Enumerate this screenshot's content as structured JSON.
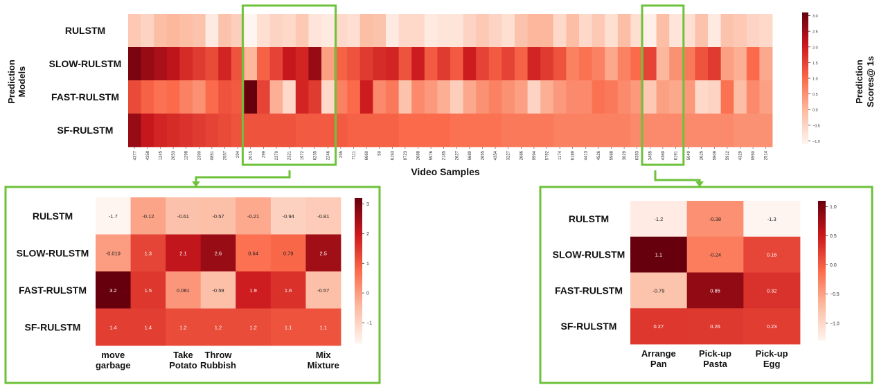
{
  "y_axis_title_lines": [
    "Prediction",
    "Models"
  ],
  "colorbar_title_lines": [
    "Prediction",
    "Scores@ 1s"
  ],
  "colors": {
    "highlight": "#6dc23a",
    "scale": [
      "#fff5f0",
      "#fcbba1",
      "#fb6a4a",
      "#cb181d",
      "#67000d"
    ]
  },
  "chart_data": [
    {
      "type": "heatmap",
      "name": "main",
      "xlabel": "Video Samples",
      "rows": [
        "RULSTM",
        "SLOW-RULSTM",
        "FAST-RULSTM",
        "SF-RULSTM"
      ],
      "columns": [
        "4377",
        "4358",
        "1245",
        "2053",
        "1298",
        "2390",
        "0851",
        "2557",
        "294",
        "2015",
        "299",
        "2370",
        "2321",
        "1972",
        "6235",
        "2246",
        "295",
        "7111",
        "6660",
        "50",
        "6193",
        "8723",
        "2688",
        "5976",
        "2185",
        "2627",
        "5689",
        "2655",
        "4354",
        "3227",
        "2686",
        "9594",
        "5792",
        "1174",
        "6189",
        "4413",
        "4526",
        "5988",
        "3029",
        "6353",
        "3455",
        "4369",
        "6191",
        "5049",
        "2625",
        "5909",
        "5912",
        "4329",
        "9550",
        "2514"
      ],
      "values": [
        [
          -0.3,
          -0.5,
          -0.1,
          0.0,
          -0.1,
          -0.2,
          -0.9,
          -0.2,
          -0.4,
          -1.1,
          -0.7,
          -0.5,
          -0.6,
          -0.3,
          -0.8,
          -0.9,
          -0.6,
          -0.7,
          -0.1,
          -0.2,
          -0.9,
          -0.6,
          -0.6,
          -0.9,
          -0.8,
          -0.8,
          -0.5,
          -0.3,
          -0.5,
          -0.7,
          -0.2,
          0.0,
          0.0,
          -0.6,
          -0.1,
          -0.6,
          -0.3,
          -0.7,
          -0.1,
          -0.7,
          -1.0,
          -0.1,
          -0.8,
          -0.7,
          -0.2,
          -0.9,
          -0.2,
          -0.3,
          -0.5,
          -0.6
        ],
        [
          2.9,
          2.6,
          2.4,
          2.2,
          1.8,
          1.6,
          1.4,
          1.9,
          1.3,
          0.0,
          1.1,
          1.5,
          2.1,
          1.9,
          2.6,
          0.3,
          1.1,
          1.3,
          1.6,
          1.8,
          1.9,
          1.3,
          2.0,
          1.2,
          1.6,
          1.2,
          2.0,
          1.5,
          1.2,
          1.5,
          1.1,
          1.9,
          1.6,
          1.3,
          0.7,
          0.9,
          0.7,
          0.2,
          0.7,
          1.0,
          1.5,
          0.0,
          0.5,
          0.8,
          1.3,
          1.6,
          0.3,
          0.1,
          1.0,
          0.2
        ],
        [
          1.4,
          1.1,
          0.9,
          1.0,
          0.7,
          0.5,
          1.0,
          1.3,
          1.2,
          3.2,
          1.5,
          0.1,
          -0.6,
          1.9,
          1.6,
          -0.6,
          0.7,
          1.0,
          2.0,
          0.6,
          0.8,
          -0.2,
          0.6,
          0.4,
          0.1,
          -0.4,
          0.2,
          0.5,
          0.7,
          0.5,
          0.3,
          -0.5,
          0.1,
          0.4,
          0.6,
          0.6,
          0.9,
          0.8,
          0.6,
          0.4,
          -0.3,
          0.3,
          0.2,
          0.4,
          -0.6,
          -0.5,
          0.9,
          -0.1,
          0.6,
          0.3
        ],
        [
          2.6,
          2.1,
          1.9,
          1.8,
          1.7,
          1.6,
          1.5,
          1.4,
          1.3,
          1.3,
          1.3,
          1.3,
          1.3,
          1.2,
          1.2,
          1.2,
          1.2,
          1.1,
          1.1,
          1.1,
          1.1,
          1.0,
          1.0,
          1.0,
          1.0,
          0.9,
          0.9,
          0.9,
          0.9,
          0.8,
          0.8,
          0.8,
          0.8,
          0.7,
          0.7,
          0.7,
          0.7,
          0.7,
          0.7,
          0.6,
          0.6,
          0.6,
          0.6,
          0.6,
          0.6,
          0.6,
          0.6,
          0.5,
          0.5,
          0.5
        ]
      ],
      "vmin": -1.1,
      "vmax": 3.1,
      "colorbar_ticks": [
        "3.0",
        "2.5",
        "2.0",
        "1.5",
        "1.0",
        "0.5",
        "0.0",
        "−0.5",
        "−1.0"
      ],
      "colorbar_tick_values": [
        3.0,
        2.5,
        2.0,
        1.5,
        1.0,
        0.5,
        0.0,
        -0.5,
        -1.0
      ],
      "highlight_column_ranges": [
        [
          9,
          15
        ],
        [
          40,
          42
        ]
      ]
    },
    {
      "type": "heatmap",
      "name": "zoom-left",
      "rows": [
        "RULSTM",
        "SLOW-RULSTM",
        "FAST-RULSTM",
        "SF-RULSTM"
      ],
      "column_labels": [
        "move\ngarbage",
        "",
        "Take\nPotato",
        "Throw\nRubbish",
        "",
        "",
        "Mix\nMixture"
      ],
      "values": [
        [
          -1.7,
          -0.12,
          -0.61,
          -0.57,
          -0.21,
          -0.94,
          -0.81
        ],
        [
          -0.019,
          1.3,
          2.1,
          2.6,
          0.64,
          0.79,
          2.5
        ],
        [
          3.2,
          1.5,
          0.081,
          -0.59,
          1.9,
          1.6,
          -0.57
        ],
        [
          1.4,
          1.4,
          1.2,
          1.2,
          1.2,
          1.1,
          1.1
        ]
      ],
      "cell_labels": [
        [
          "-1.7",
          "-0.12",
          "-0.61",
          "-0.57",
          "-0.21",
          "-0.94",
          "-0.81"
        ],
        [
          "-0.019",
          "1.3",
          "2.1",
          "2.6",
          "0.64",
          "0.79",
          "2.5"
        ],
        [
          "3.2",
          "1.5",
          "0.081",
          "-0.59",
          "1.9",
          "1.6",
          "-0.57"
        ],
        [
          "1.4",
          "1.4",
          "1.2",
          "1.2",
          "1.2",
          "1.1",
          "1.1"
        ]
      ],
      "vmin": -1.7,
      "vmax": 3.2,
      "colorbar_ticks": [
        "3",
        "2",
        "1",
        "0",
        "−1"
      ],
      "colorbar_tick_values": [
        3,
        2,
        1,
        0,
        -1
      ]
    },
    {
      "type": "heatmap",
      "name": "zoom-right",
      "rows": [
        "RULSTM",
        "SLOW-RULSTM",
        "FAST-RULSTM",
        "SF-RULSTM"
      ],
      "column_labels": [
        "Arrange\nPan",
        "Pick-up\nPasta",
        "Pick-up\nEgg"
      ],
      "values": [
        [
          -1.2,
          -0.38,
          -1.3
        ],
        [
          1.1,
          -0.24,
          0.16
        ],
        [
          -0.79,
          0.85,
          0.32
        ],
        [
          0.27,
          0.26,
          0.23
        ]
      ],
      "cell_labels": [
        [
          "-1.2",
          "-0.38",
          "-1.3"
        ],
        [
          "1.1",
          "-0.24",
          "0.16"
        ],
        [
          "-0.79",
          "0.85",
          "0.32"
        ],
        [
          "0.27",
          "0.26",
          "0.23"
        ]
      ],
      "vmin": -1.3,
      "vmax": 1.1,
      "colorbar_ticks": [
        "1.0",
        "0.5",
        "0.0",
        "−0.5",
        "−1.0"
      ],
      "colorbar_tick_values": [
        1.0,
        0.5,
        0.0,
        -0.5,
        -1.0
      ]
    }
  ]
}
